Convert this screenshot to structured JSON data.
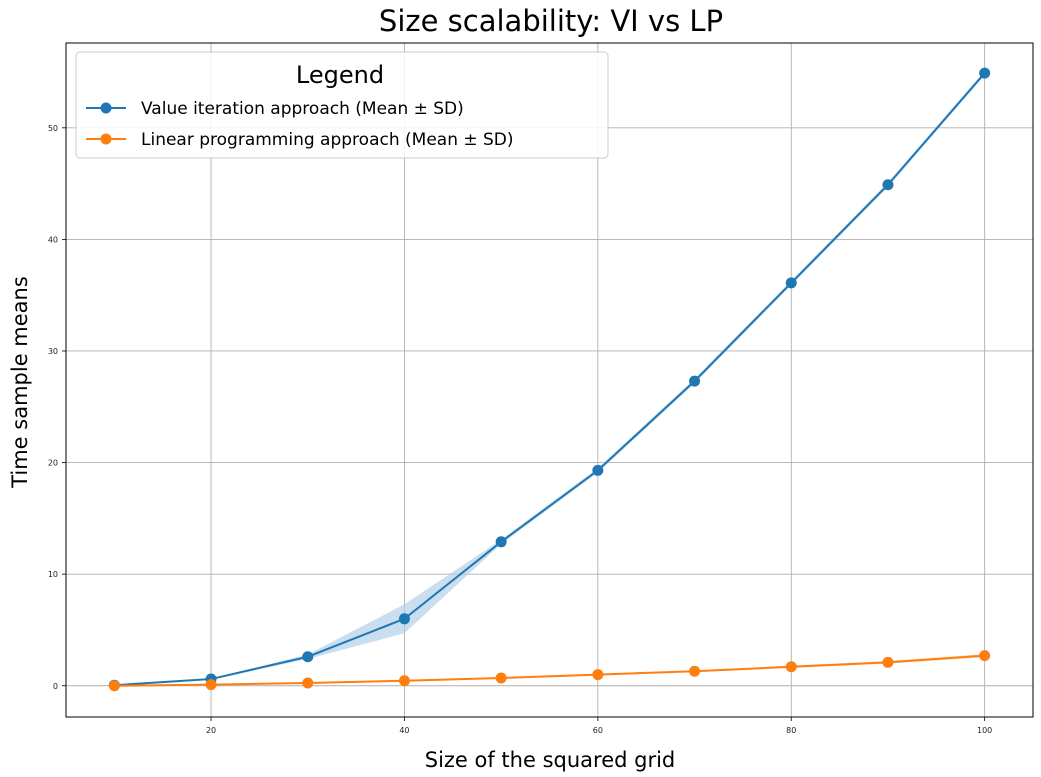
{
  "chart_data": {
    "type": "line",
    "title": "Size scalability: VI vs LP",
    "xlabel": "Size of the squared grid",
    "ylabel": "Time sample means",
    "x": [
      10,
      20,
      30,
      40,
      50,
      60,
      70,
      80,
      90,
      100
    ],
    "xlim": [
      5,
      105
    ],
    "ylim": [
      -2.8,
      57.6
    ],
    "xticks": [
      20,
      40,
      60,
      80,
      100
    ],
    "yticks": [
      0,
      10,
      20,
      30,
      40,
      50
    ],
    "grid": true,
    "legend": {
      "title": "Legend",
      "placement": "top-left"
    },
    "series": [
      {
        "name": "Value iteration approach (Mean ± SD)",
        "color": "#1f77b4",
        "band_color": "#aecde8",
        "values": [
          0.05,
          0.6,
          2.6,
          6.0,
          12.9,
          19.3,
          27.3,
          36.1,
          44.9,
          54.9
        ],
        "sd": [
          0.0,
          0.05,
          0.2,
          1.3,
          0.2,
          0.2,
          0.2,
          0.2,
          0.2,
          0.2
        ]
      },
      {
        "name": "Linear programming approach (Mean ± SD)",
        "color": "#ff7f0e",
        "band_color": "#ffc99a",
        "values": [
          0.0,
          0.1,
          0.25,
          0.45,
          0.7,
          1.0,
          1.3,
          1.7,
          2.1,
          2.7
        ],
        "sd": [
          0.0,
          0.02,
          0.03,
          0.04,
          0.05,
          0.06,
          0.08,
          0.1,
          0.12,
          0.15
        ]
      }
    ]
  }
}
